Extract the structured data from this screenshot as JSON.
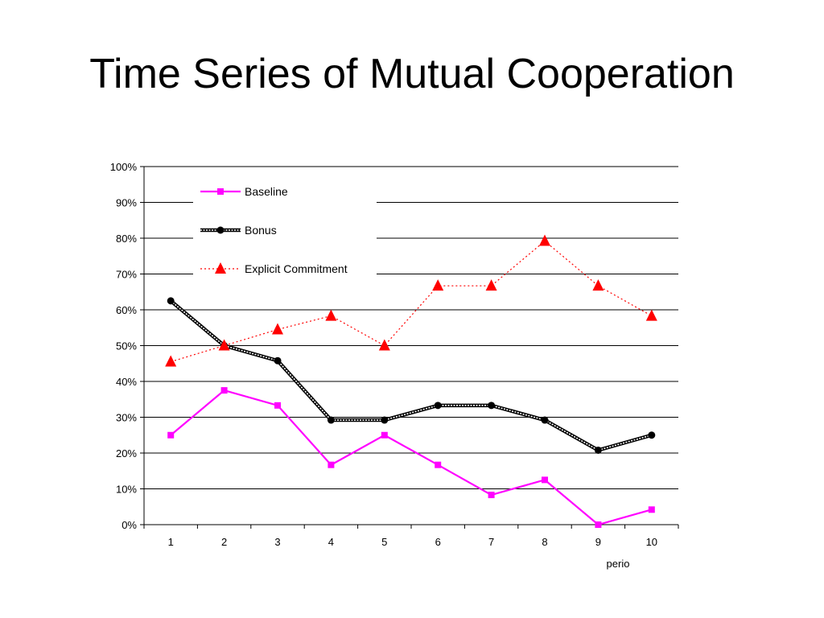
{
  "slide": {
    "title": "Time Series of Mutual Cooperation"
  },
  "chart_data": {
    "type": "line",
    "title": "",
    "xlabel": "perio",
    "ylabel": "",
    "categories": [
      "1",
      "2",
      "3",
      "4",
      "5",
      "6",
      "7",
      "8",
      "9",
      "10"
    ],
    "ylim": [
      0,
      1
    ],
    "yticks": [
      "0%",
      "10%",
      "20%",
      "30%",
      "40%",
      "50%",
      "60%",
      "70%",
      "80%",
      "90%",
      "100%"
    ],
    "grid": true,
    "legend_position": "top-left",
    "series": [
      {
        "name": "Baseline",
        "values": [
          0.25,
          0.375,
          0.333,
          0.167,
          0.25,
          0.167,
          0.083,
          0.125,
          0.0,
          0.042
        ],
        "color": "#ff00ff",
        "marker": "square",
        "line_style": "solid"
      },
      {
        "name": "Bonus",
        "values": [
          0.625,
          0.5,
          0.458,
          0.292,
          0.292,
          0.333,
          0.333,
          0.292,
          0.208,
          0.25
        ],
        "color": "#000000",
        "marker": "circle",
        "line_style": "double-hatched"
      },
      {
        "name": "Explicit Commitment",
        "values": [
          0.455,
          0.5,
          0.545,
          0.583,
          0.5,
          0.667,
          0.667,
          0.792,
          0.667,
          0.583
        ],
        "color": "#ff0000",
        "marker": "triangle",
        "line_style": "dotted"
      }
    ]
  }
}
